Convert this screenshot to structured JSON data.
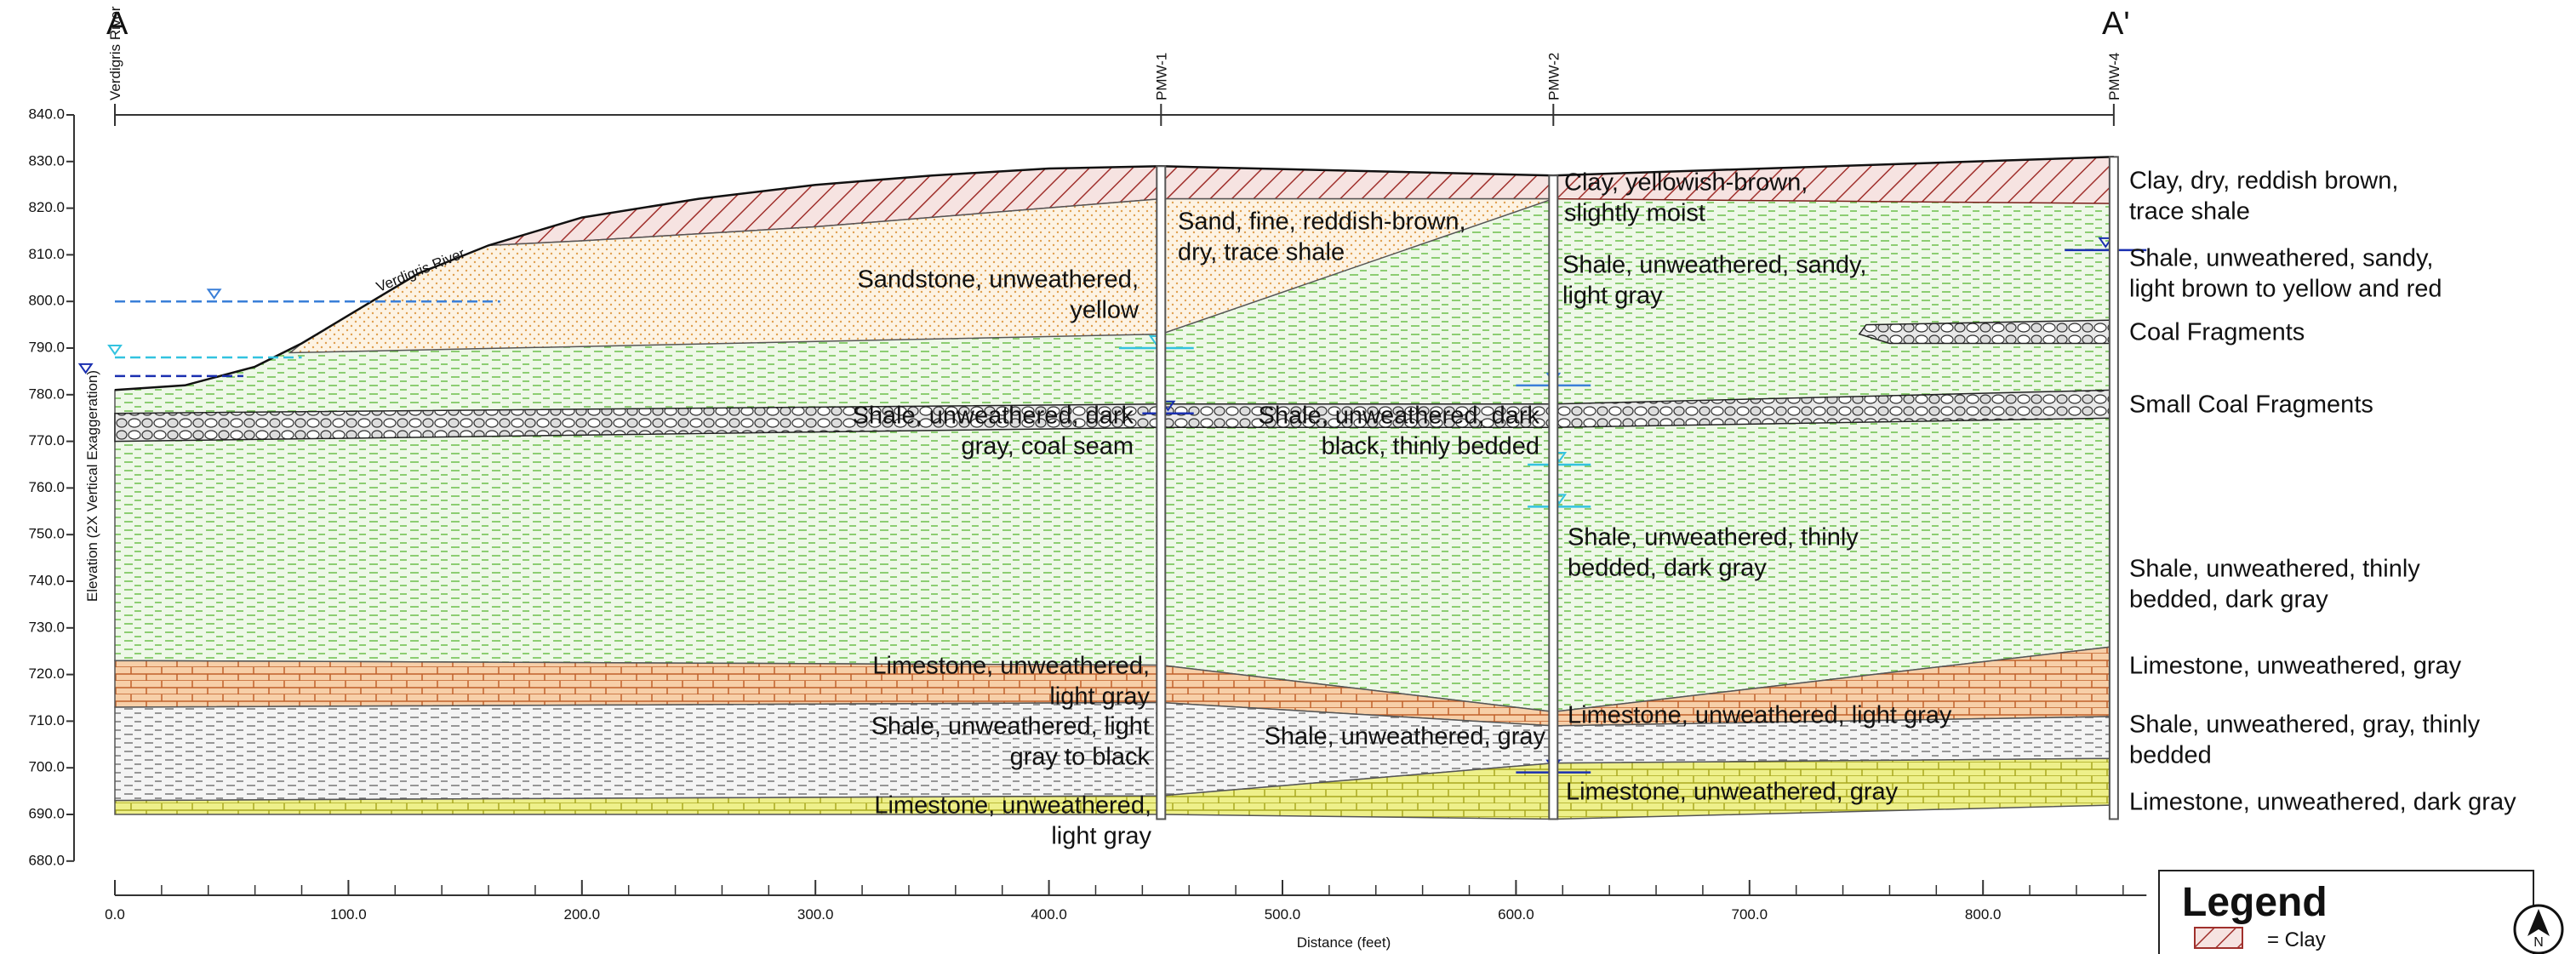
{
  "section": {
    "start_label": "A",
    "end_label": "A'"
  },
  "wells": [
    "Verdigris River",
    "PMW-1",
    "PMW-2",
    "PMW-4"
  ],
  "river_label": "Verdigris River",
  "annotations": [
    [
      "Sandstone, unweathered,",
      "yellow"
    ],
    [
      "Sand, fine, reddish-brown,",
      "dry, trace shale"
    ],
    [
      "Clay, yellowish-brown,",
      "slightly moist"
    ],
    [
      "Shale, unweathered, sandy,",
      "light gray"
    ],
    [
      "Shale, unweathered, dark",
      "gray, coal seam"
    ],
    [
      "Shale, unweathered, dark",
      "black, thinly bedded"
    ],
    [
      "Shale, unweathered, thinly",
      "bedded, dark gray"
    ],
    [
      "Limestone, unweathered,",
      "light gray"
    ],
    [
      "Shale, unweathered, light",
      "gray to black"
    ],
    [
      "Shale, unweathered, gray"
    ],
    [
      "Limestone, unweathered, light gray"
    ],
    [
      "Limestone, unweathered,",
      "light gray"
    ],
    [
      "Limestone, unweathered, gray"
    ],
    [
      "Clay, dry, reddish brown,",
      "trace shale"
    ],
    [
      "Shale, unweathered, sandy,",
      "light brown to yellow and red"
    ],
    [
      "Coal Fragments"
    ],
    [
      "Small Coal Fragments"
    ],
    [
      "Shale, unweathered, thinly",
      "bedded, dark gray"
    ],
    [
      "Limestone, unweathered, gray"
    ],
    [
      "Shale, unweathered, gray, thinly",
      "bedded"
    ],
    [
      "Limestone, unweathered, dark gray"
    ]
  ],
  "y_axis": {
    "label": "Elevation (2X Vertical Exaggeration)",
    "ticks": [
      "840.0",
      "830.0",
      "820.0",
      "810.0",
      "800.0",
      "790.0",
      "780.0",
      "770.0",
      "760.0",
      "750.0",
      "740.0",
      "730.0",
      "720.0",
      "710.0",
      "700.0",
      "690.0",
      "680.0"
    ]
  },
  "x_axis": {
    "label": "Distance (feet)",
    "ticks": [
      "0.0",
      "100.0",
      "200.0",
      "300.0",
      "400.0",
      "500.0",
      "600.0",
      "700.0",
      "800.0"
    ]
  },
  "legend": {
    "title": "Legend",
    "items": [
      "= Clay"
    ]
  },
  "north": "N"
}
